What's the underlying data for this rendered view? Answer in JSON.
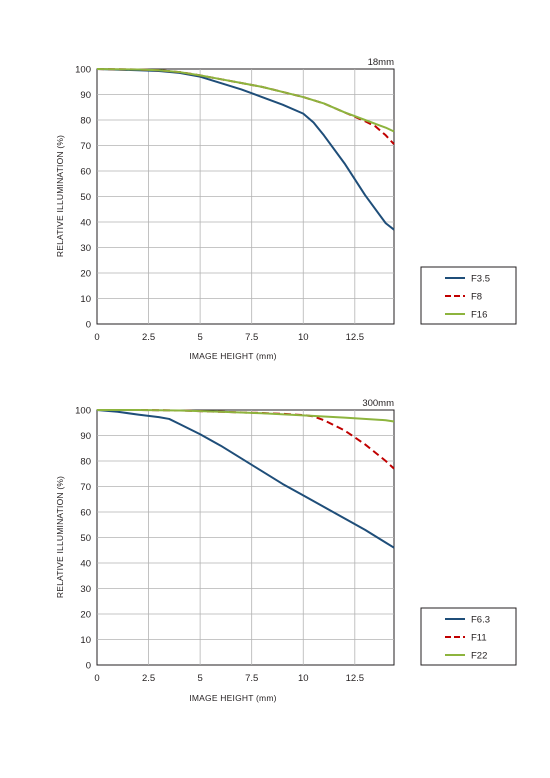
{
  "chart_data": [
    {
      "type": "line",
      "title": "18mm",
      "xlabel": "IMAGE HEIGHT (mm)",
      "ylabel": "RELATIVE ILLUMINATION (%)",
      "xlim": [
        0,
        14.4
      ],
      "ylim": [
        0,
        100
      ],
      "xticks": [
        "0",
        "2.5",
        "5",
        "7.5",
        "10",
        "12.5"
      ],
      "yticks": [
        "0",
        "10",
        "20",
        "30",
        "40",
        "50",
        "60",
        "70",
        "80",
        "90",
        "100"
      ],
      "grid": true,
      "legend_position": "bottom-right outside",
      "series": [
        {
          "name": "F3.5",
          "color": "#1f4e79",
          "dash": "solid",
          "points": [
            [
              0,
              100
            ],
            [
              2,
              99.5
            ],
            [
              3,
              99.2
            ],
            [
              4,
              98.5
            ],
            [
              5,
              97
            ],
            [
              6,
              94.5
            ],
            [
              7,
              92
            ],
            [
              8,
              89
            ],
            [
              9,
              86
            ],
            [
              10,
              82.5
            ],
            [
              10.5,
              79
            ],
            [
              11,
              74
            ],
            [
              12,
              63
            ],
            [
              13,
              50.5
            ],
            [
              14,
              39.5
            ],
            [
              14.4,
              37
            ]
          ]
        },
        {
          "name": "F8",
          "color": "#c00000",
          "dash": "dashed",
          "points": [
            [
              0,
              100
            ],
            [
              2,
              99.8
            ],
            [
              3,
              99.5
            ],
            [
              4,
              98.8
            ],
            [
              5,
              97.5
            ],
            [
              6,
              96
            ],
            [
              7,
              94.5
            ],
            [
              8,
              93
            ],
            [
              9,
              91
            ],
            [
              10,
              89
            ],
            [
              11,
              86.5
            ],
            [
              12,
              83
            ],
            [
              13,
              79.5
            ],
            [
              13.5,
              77.5
            ],
            [
              14,
              74
            ],
            [
              14.4,
              70.5
            ]
          ]
        },
        {
          "name": "F16",
          "color": "#8db43e",
          "dash": "solid",
          "points": [
            [
              0,
              100
            ],
            [
              2,
              99.8
            ],
            [
              3,
              99.5
            ],
            [
              4,
              98.8
            ],
            [
              5,
              97.5
            ],
            [
              6,
              96
            ],
            [
              7,
              94.5
            ],
            [
              8,
              93
            ],
            [
              9,
              91
            ],
            [
              10,
              89
            ],
            [
              11,
              86.5
            ],
            [
              12,
              83
            ],
            [
              13,
              80
            ],
            [
              14,
              77
            ],
            [
              14.4,
              75.5
            ]
          ]
        }
      ]
    },
    {
      "type": "line",
      "title": "300mm",
      "xlabel": "IMAGE HEIGHT (mm)",
      "ylabel": "RELATIVE ILLUMINATION (%)",
      "xlim": [
        0,
        14.4
      ],
      "ylim": [
        0,
        100
      ],
      "xticks": [
        "0",
        "2.5",
        "5",
        "7.5",
        "10",
        "12.5"
      ],
      "yticks": [
        "0",
        "10",
        "20",
        "30",
        "40",
        "50",
        "60",
        "70",
        "80",
        "90",
        "100"
      ],
      "grid": true,
      "legend_position": "bottom-right outside",
      "series": [
        {
          "name": "F6.3",
          "color": "#1f4e79",
          "dash": "solid",
          "points": [
            [
              0,
              100
            ],
            [
              1,
              99.3
            ],
            [
              2,
              98.2
            ],
            [
              3,
              97.2
            ],
            [
              3.5,
              96.5
            ],
            [
              4,
              94.5
            ],
            [
              5,
              90.5
            ],
            [
              6,
              86
            ],
            [
              7,
              81
            ],
            [
              8,
              76
            ],
            [
              9,
              71
            ],
            [
              10,
              66.5
            ],
            [
              11,
              62
            ],
            [
              12,
              57.5
            ],
            [
              13,
              53
            ],
            [
              14,
              48
            ],
            [
              14.4,
              46
            ]
          ]
        },
        {
          "name": "F11",
          "color": "#c00000",
          "dash": "dashed",
          "points": [
            [
              0,
              100
            ],
            [
              2,
              100
            ],
            [
              4,
              99.8
            ],
            [
              6,
              99.3
            ],
            [
              8,
              98.8
            ],
            [
              9,
              98.5
            ],
            [
              10,
              98
            ],
            [
              10.5,
              97.5
            ],
            [
              11,
              96
            ],
            [
              12,
              92
            ],
            [
              13,
              86.5
            ],
            [
              14,
              80
            ],
            [
              14.4,
              77
            ]
          ]
        },
        {
          "name": "F22",
          "color": "#8db43e",
          "dash": "solid",
          "points": [
            [
              0,
              100
            ],
            [
              2,
              100
            ],
            [
              4,
              99.8
            ],
            [
              6,
              99.3
            ],
            [
              8,
              98.7
            ],
            [
              10,
              97.9
            ],
            [
              12,
              97
            ],
            [
              14,
              96
            ],
            [
              14.4,
              95.5
            ]
          ]
        }
      ]
    }
  ]
}
